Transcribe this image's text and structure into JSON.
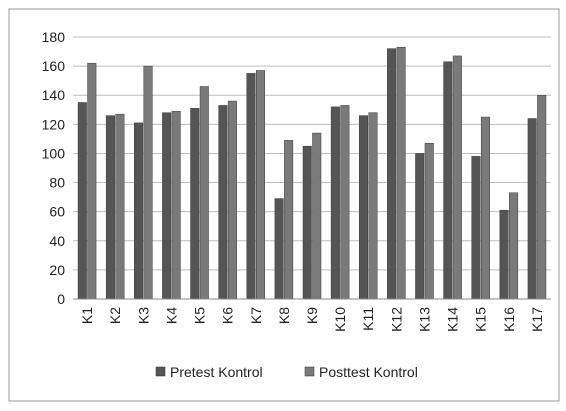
{
  "chart_data": {
    "type": "bar",
    "title": "",
    "xlabel": "",
    "ylabel": "",
    "ylim": [
      0,
      180
    ],
    "y_ticks": [
      0,
      20,
      40,
      60,
      80,
      100,
      120,
      140,
      160,
      180
    ],
    "grid": true,
    "legend_position": "bottom",
    "categories": [
      "K1",
      "K2",
      "K3",
      "K4",
      "K5",
      "K6",
      "K7",
      "K8",
      "K9",
      "K10",
      "K11",
      "K12",
      "K13",
      "K14",
      "K15",
      "K16",
      "K17"
    ],
    "series": [
      {
        "name": "Pretest Kontrol",
        "color": "#555555",
        "values": [
          135,
          126,
          121,
          128,
          131,
          133,
          155,
          69,
          105,
          132,
          126,
          172,
          100,
          163,
          98,
          61,
          124
        ]
      },
      {
        "name": "Posttest Kontrol",
        "color": "#7a7a7a",
        "values": [
          162,
          127,
          160,
          129,
          146,
          136,
          157,
          109,
          114,
          133,
          128,
          173,
          107,
          167,
          125,
          73,
          140
        ]
      }
    ]
  }
}
